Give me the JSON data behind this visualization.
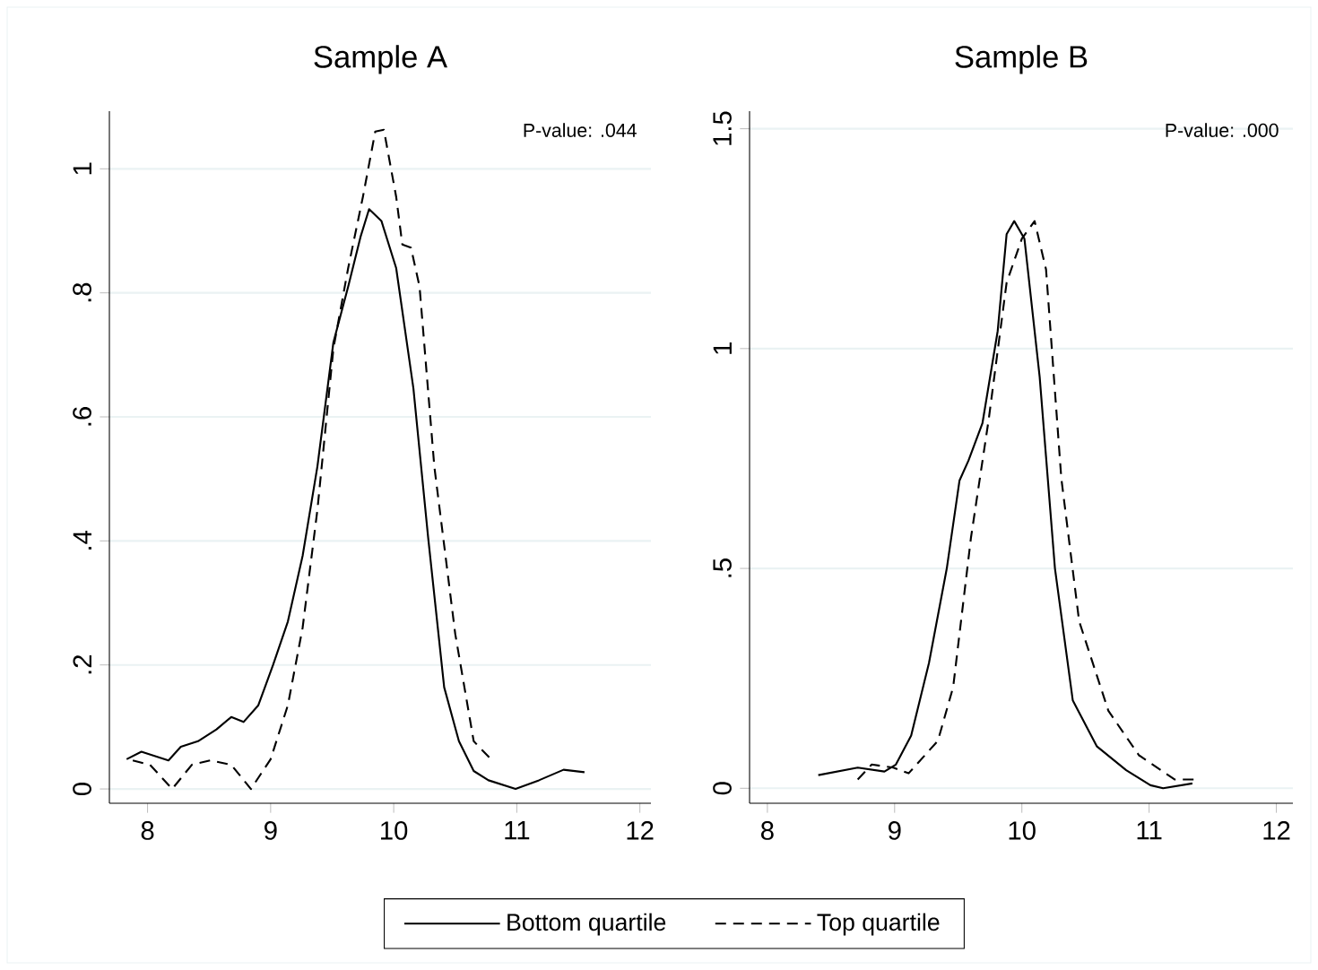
{
  "chart_data": [
    {
      "type": "line",
      "title": "Sample A",
      "annotations": [
        "P-value: .044"
      ],
      "xlim": [
        7.69,
        12.09
      ],
      "ylim": [
        -0.023,
        1.093
      ],
      "xticks": [
        8,
        9,
        10,
        11,
        12
      ],
      "yticks": [
        0,
        {
          "value": 0.2,
          "label": ".2"
        },
        {
          "value": 0.4,
          "label": ".4"
        },
        {
          "value": 0.6,
          "label": ".6"
        },
        {
          "value": 0.8,
          "label": ".8"
        },
        1
      ],
      "grid": "y",
      "legend": "bottom",
      "series": [
        {
          "name": "Bottom quartile",
          "color": "#000000",
          "line_style": "solid",
          "x": [
            7.83,
            7.95,
            8.17,
            8.27,
            8.41,
            8.56,
            8.68,
            8.78,
            8.9,
            9.02,
            9.14,
            9.26,
            9.38,
            9.51,
            9.63,
            9.73,
            9.8,
            9.9,
            10.02,
            10.16,
            10.28,
            10.41,
            10.53,
            10.65,
            10.77,
            10.99,
            11.18,
            11.38,
            11.55
          ],
          "values": [
            0.048,
            0.06,
            0.046,
            0.068,
            0.077,
            0.096,
            0.116,
            0.108,
            0.135,
            0.2,
            0.27,
            0.376,
            0.52,
            0.72,
            0.81,
            0.89,
            0.935,
            0.916,
            0.84,
            0.646,
            0.405,
            0.164,
            0.077,
            0.029,
            0.014,
            0,
            0.014,
            0.031,
            0.027
          ]
        },
        {
          "name": "Top quartile",
          "color": "#000000",
          "line_style": "dashed",
          "x": [
            7.88,
            8.02,
            8.2,
            8.36,
            8.51,
            8.68,
            8.84,
            9.0,
            9.14,
            9.26,
            9.38,
            9.51,
            9.63,
            9.75,
            9.85,
            9.92,
            10.02,
            10.07,
            10.14,
            10.21,
            10.33,
            10.5,
            10.65,
            10.79
          ],
          "values": [
            0.046,
            0.039,
            0,
            0.039,
            0.046,
            0.039,
            0,
            0.048,
            0.135,
            0.26,
            0.45,
            0.71,
            0.84,
            0.955,
            1.06,
            1.063,
            0.955,
            0.878,
            0.873,
            0.81,
            0.52,
            0.25,
            0.077,
            0.048
          ]
        }
      ]
    },
    {
      "type": "line",
      "title": "Sample B",
      "annotations": [
        "P-value: .000"
      ],
      "xlim": [
        7.86,
        12.13
      ],
      "ylim": [
        -0.034,
        1.54
      ],
      "xticks": [
        8,
        9,
        10,
        11,
        12
      ],
      "yticks": [
        0,
        {
          "value": 0.5,
          "label": ".5"
        },
        1,
        1.5
      ],
      "grid": "y",
      "series": [
        {
          "color": "#000000",
          "line_style": "solid",
          "x": [
            8.4,
            8.71,
            8.92,
            9.01,
            9.13,
            9.27,
            9.41,
            9.51,
            9.58,
            9.69,
            9.81,
            9.88,
            9.94,
            10.02,
            10.14,
            10.26,
            10.4,
            10.59,
            10.82,
            11.01,
            11.11,
            11.34
          ],
          "values": [
            0.03,
            0.047,
            0.038,
            0.054,
            0.12,
            0.285,
            0.5,
            0.7,
            0.745,
            0.83,
            1.04,
            1.26,
            1.29,
            1.25,
            0.935,
            0.5,
            0.2,
            0.095,
            0.041,
            0.007,
            0,
            0.011
          ]
        },
        {
          "color": "#000000",
          "line_style": "dashed",
          "x": [
            8.71,
            8.82,
            8.99,
            9.11,
            9.34,
            9.46,
            9.6,
            9.74,
            9.88,
            10.0,
            10.1,
            10.19,
            10.31,
            10.45,
            10.68,
            10.92,
            11.2,
            11.36
          ],
          "values": [
            0.02,
            0.054,
            0.047,
            0.034,
            0.108,
            0.23,
            0.57,
            0.84,
            1.15,
            1.25,
            1.29,
            1.18,
            0.705,
            0.38,
            0.176,
            0.075,
            0.02,
            0.02
          ]
        }
      ]
    }
  ]
}
